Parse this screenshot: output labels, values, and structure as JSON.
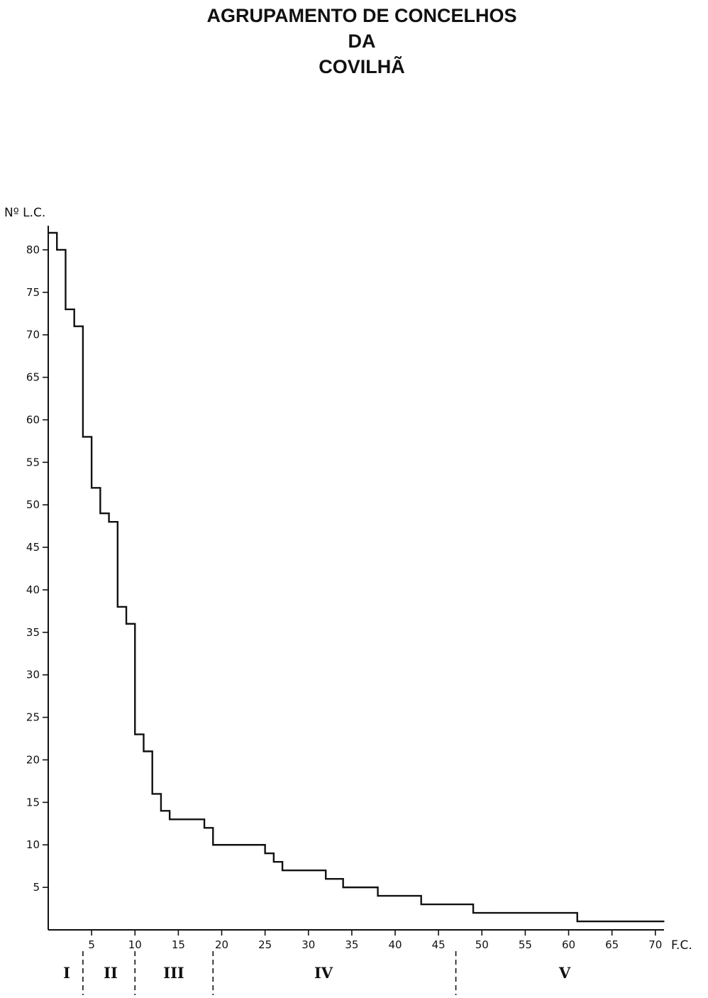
{
  "title_lines": [
    "AGRUPAMENTO DE CONCELHOS",
    "DA",
    "COVILHÃ"
  ],
  "chart_data": {
    "type": "line",
    "step": true,
    "xlabel": "F.C.",
    "ylabel": "Nº L.C.",
    "xlim": [
      0,
      71
    ],
    "ylim": [
      0,
      82
    ],
    "x_ticks": [
      5,
      10,
      15,
      20,
      25,
      30,
      35,
      40,
      45,
      50,
      55,
      60,
      65,
      70
    ],
    "y_ticks": [
      5,
      10,
      15,
      20,
      25,
      30,
      35,
      40,
      45,
      50,
      55,
      60,
      65,
      70,
      75,
      80
    ],
    "series": [
      {
        "x": [
          0,
          1,
          2,
          3,
          4,
          5,
          6,
          7,
          8,
          9,
          10,
          11,
          12,
          13,
          14,
          15,
          16,
          17,
          18,
          19,
          20,
          21,
          22,
          23,
          24,
          25,
          26,
          27,
          28,
          29,
          30,
          31,
          32,
          33,
          34,
          35,
          36,
          37,
          38,
          39,
          40,
          41,
          42,
          43,
          44,
          45,
          46,
          47,
          48,
          49,
          50,
          51,
          52,
          53,
          54,
          55,
          56,
          57,
          58,
          59,
          60,
          61,
          62,
          63,
          64,
          65,
          66,
          67,
          68,
          69,
          70,
          71
        ],
        "y": [
          82,
          80,
          73,
          71,
          58,
          52,
          49,
          48,
          38,
          36,
          23,
          21,
          16,
          14,
          13,
          13,
          13,
          13,
          12,
          10,
          10,
          10,
          10,
          10,
          10,
          9,
          8,
          7,
          7,
          7,
          7,
          7,
          6,
          6,
          5,
          5,
          5,
          5,
          4,
          4,
          4,
          4,
          4,
          3,
          3,
          3,
          3,
          3,
          3,
          2,
          2,
          2,
          2,
          2,
          2,
          2,
          2,
          2,
          2,
          2,
          2,
          1,
          1,
          1,
          1,
          1,
          1,
          1,
          1,
          1,
          1,
          1
        ]
      }
    ],
    "groups": [
      {
        "label": "I",
        "from": 0,
        "to": 4
      },
      {
        "label": "II",
        "from": 4,
        "to": 10
      },
      {
        "label": "III",
        "from": 10,
        "to": 19
      },
      {
        "label": "IV",
        "from": 19,
        "to": 47
      },
      {
        "label": "V",
        "from": 47,
        "to": 71
      }
    ],
    "group_boundaries": [
      4,
      10,
      19,
      47
    ]
  }
}
